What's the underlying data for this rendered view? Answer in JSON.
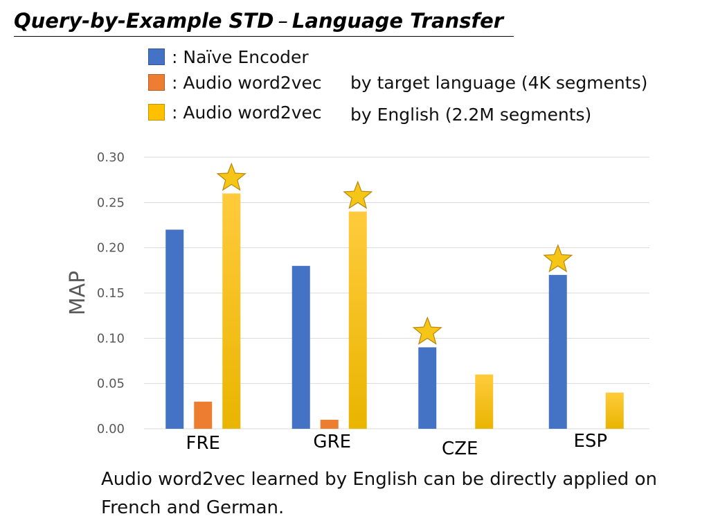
{
  "slide": {
    "title_part1": "Query-by-Example STD",
    "title_dash": "–",
    "title_part2": "Language Transfer",
    "caption": "Audio word2vec learned by English can be directly applied on French and German."
  },
  "legend": [
    {
      "text": ": Naïve Encoder",
      "extra": "",
      "color": "#4472C4"
    },
    {
      "text": ": Audio word2vec",
      "extra": "by target language (4K segments)",
      "color": "#ED7D31"
    },
    {
      "text": ": Audio word2vec",
      "extra": "by English (2.2M segments)",
      "color": "#FFC000"
    }
  ],
  "chart_data": {
    "type": "bar",
    "categories": [
      "FRE",
      "GRE",
      "CZE",
      "ESP"
    ],
    "series": [
      {
        "values": [
          0.22,
          0.18,
          0.09,
          0.17
        ],
        "color": "#4472C4"
      },
      {
        "values": [
          0.03,
          0.01,
          0,
          0
        ],
        "color": "#ED7D31"
      },
      {
        "values": [
          0.26,
          0.24,
          0.06,
          0.04
        ],
        "color": "#FFC000"
      }
    ],
    "ylabel": "MAP",
    "ylim": [
      0,
      0.3
    ],
    "yticks": [
      "0.00",
      "0.05",
      "0.10",
      "0.15",
      "0.20",
      "0.25",
      "0.30"
    ],
    "grid": true,
    "annotations": {
      "best_marker": "star-icon",
      "best_marker_color": "#F5C518",
      "best_points": [
        {
          "category": "FRE",
          "series_index": 2,
          "value": 0.26
        },
        {
          "category": "GRE",
          "series_index": 2,
          "value": 0.24
        },
        {
          "category": "CZE",
          "series_index": 0,
          "value": 0.09
        },
        {
          "category": "ESP",
          "series_index": 0,
          "value": 0.17
        }
      ]
    }
  }
}
